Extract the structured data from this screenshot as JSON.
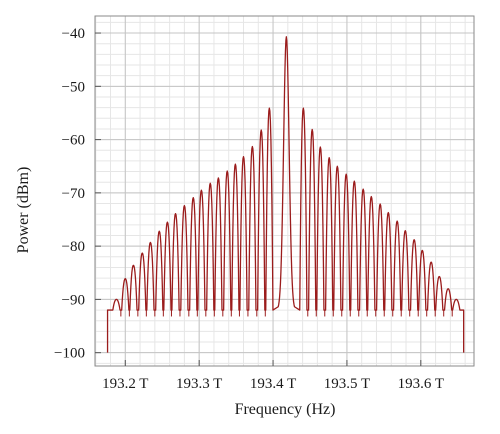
{
  "chart_data": {
    "type": "line",
    "xlabel": "Frequency (Hz)",
    "ylabel": "Power (dBm)",
    "xlim": [
      193.159,
      193.672
    ],
    "ylim": [
      -102.5,
      -36.8
    ],
    "x_unit": "THz",
    "x_ticks": [
      {
        "value": 193.2,
        "label": "193.2 T"
      },
      {
        "value": 193.3,
        "label": "193.3 T"
      },
      {
        "value": 193.4,
        "label": "193.4 T"
      },
      {
        "value": 193.5,
        "label": "193.5 T"
      },
      {
        "value": 193.6,
        "label": "193.6 T"
      }
    ],
    "y_ticks": [
      {
        "value": -40,
        "label": "−40"
      },
      {
        "value": -50,
        "label": "−50"
      },
      {
        "value": -60,
        "label": "−60"
      },
      {
        "value": -70,
        "label": "−70"
      },
      {
        "value": -80,
        "label": "−80"
      },
      {
        "value": -90,
        "label": "−90"
      },
      {
        "value": -100,
        "label": "−100"
      }
    ],
    "grid": true,
    "minor_grid": true,
    "legend": "none",
    "series": [
      {
        "color": "#9b1c1c",
        "center_x": 193.418,
        "peak_y": -40.7,
        "baseline_y": -92,
        "floor_y": -100,
        "edge_x": [
          193.176,
          193.658
        ],
        "comb_spacing_x": 0.0116,
        "peaks_left": [
          {
            "x": 193.188,
            "y": -90
          },
          {
            "x": 193.2,
            "y": -86.1
          },
          {
            "x": 193.211,
            "y": -83.6
          },
          {
            "x": 193.223,
            "y": -81.3
          },
          {
            "x": 193.234,
            "y": -79.3
          },
          {
            "x": 193.246,
            "y": -77.2
          },
          {
            "x": 193.257,
            "y": -75.5
          },
          {
            "x": 193.268,
            "y": -73.9
          },
          {
            "x": 193.28,
            "y": -72.4
          },
          {
            "x": 193.292,
            "y": -70.9
          },
          {
            "x": 193.303,
            "y": -69.5
          },
          {
            "x": 193.315,
            "y": -68.2
          },
          {
            "x": 193.326,
            "y": -67.2
          },
          {
            "x": 193.338,
            "y": -65.9
          },
          {
            "x": 193.349,
            "y": -64.6
          },
          {
            "x": 193.36,
            "y": -63.2
          },
          {
            "x": 193.372,
            "y": -61.3
          },
          {
            "x": 193.384,
            "y": -58.2
          },
          {
            "x": 193.395,
            "y": -54.1
          }
        ],
        "peaks_right": [
          {
            "x": 193.441,
            "y": -54.1
          },
          {
            "x": 193.453,
            "y": -58.1
          },
          {
            "x": 193.464,
            "y": -61.4
          },
          {
            "x": 193.476,
            "y": -63.4
          },
          {
            "x": 193.487,
            "y": -65
          },
          {
            "x": 193.499,
            "y": -66.5
          },
          {
            "x": 193.51,
            "y": -67.8
          },
          {
            "x": 193.522,
            "y": -69.3
          },
          {
            "x": 193.533,
            "y": -70.7
          },
          {
            "x": 193.545,
            "y": -72.1
          },
          {
            "x": 193.556,
            "y": -73.7
          },
          {
            "x": 193.568,
            "y": -75.3
          },
          {
            "x": 193.579,
            "y": -77.1
          },
          {
            "x": 193.591,
            "y": -78.8
          },
          {
            "x": 193.602,
            "y": -80.8
          },
          {
            "x": 193.614,
            "y": -83
          },
          {
            "x": 193.625,
            "y": -85.7
          },
          {
            "x": 193.637,
            "y": -88
          },
          {
            "x": 193.648,
            "y": -90
          }
        ]
      }
    ]
  }
}
